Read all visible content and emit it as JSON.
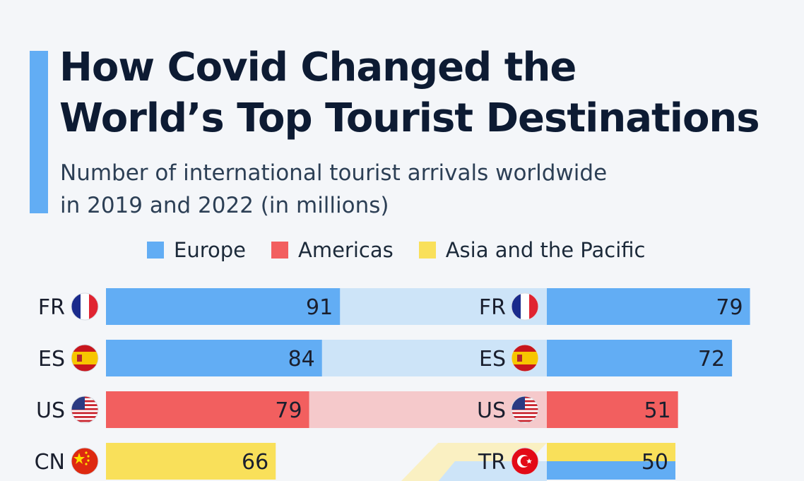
{
  "title_lines": [
    "How Covid Changed the",
    "World’s Top Tourist Destinations"
  ],
  "subtitle_lines": [
    "Number of international tourist arrivals worldwide",
    "in 2019 and 2022 (in millions)"
  ],
  "legend": [
    {
      "label": "Europe",
      "color": "#62adf4"
    },
    {
      "label": "Americas",
      "color": "#f25f5f"
    },
    {
      "label": "Asia and the Pacific",
      "color": "#f9e05a"
    }
  ],
  "colors": {
    "Europe": "#62adf4",
    "Americas": "#f25f5f",
    "Asia and the Pacific": "#f9e05a",
    "Europe_light": "#cde4f8",
    "Americas_light": "#f5c9cb",
    "Asia and the Pacific_light": "#fbefb4",
    "title": "#0d1b33",
    "accent": "#62adf4"
  },
  "chart_data": {
    "type": "bar",
    "orientation": "horizontal",
    "unit": "millions",
    "series": [
      {
        "name": "2019",
        "rows": [
          {
            "country": "FR",
            "region": "Europe",
            "value": 91,
            "flag": "france-flag-icon"
          },
          {
            "country": "ES",
            "region": "Europe",
            "value": 84,
            "flag": "spain-flag-icon"
          },
          {
            "country": "US",
            "region": "Americas",
            "value": 79,
            "flag": "usa-flag-icon"
          },
          {
            "country": "CN",
            "region": "Asia and the Pacific",
            "value": 66,
            "flag": "china-flag-icon"
          }
        ]
      },
      {
        "name": "2022",
        "rows": [
          {
            "country": "FR",
            "region": "Europe",
            "value": 79,
            "flag": "france-flag-icon"
          },
          {
            "country": "ES",
            "region": "Europe",
            "value": 72,
            "flag": "spain-flag-icon"
          },
          {
            "country": "US",
            "region": "Americas",
            "value": 51,
            "flag": "usa-flag-icon"
          },
          {
            "country": "TR",
            "region": "Europe",
            "value": 50,
            "flag": "turkey-flag-icon"
          }
        ]
      }
    ]
  }
}
